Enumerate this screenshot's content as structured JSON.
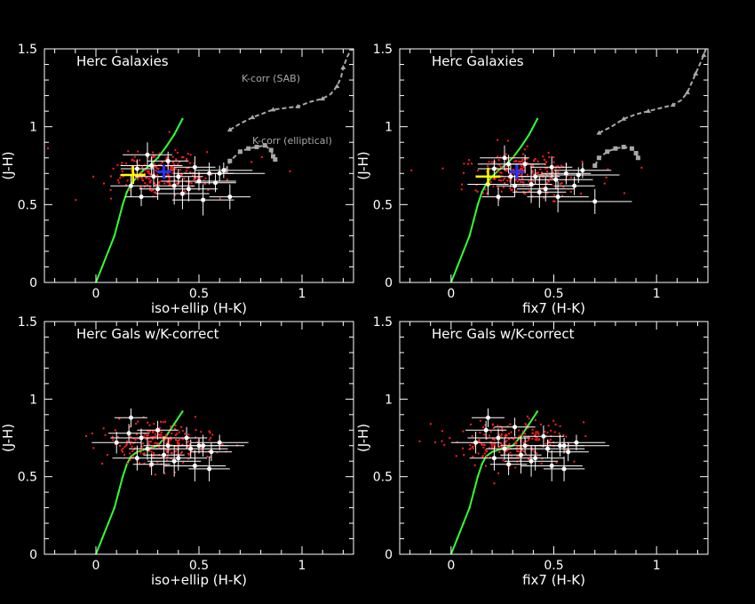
{
  "colors": {
    "background": "#000000",
    "axes": "#ffffff",
    "galaxies": "#ff2020",
    "measurements": "#ffffff",
    "track": "#33ff33",
    "kcorr": "#a8a8a8",
    "mean_marker": "#2233ff",
    "reference_marker": "#ffff00"
  },
  "chart_data": [
    {
      "type": "scatter",
      "title": "Herc Galaxies",
      "xlabel": "iso+ellip (H-K)",
      "ylabel": "(J-H)",
      "xlim": [
        -0.25,
        1.25
      ],
      "ylim": [
        0,
        1.5
      ],
      "xticks": [
        "0",
        "0.5",
        "1"
      ],
      "yticks": [
        "0",
        "0.5",
        "1",
        "1.5"
      ],
      "galaxy_cloud": {
        "center": [
          0.32,
          0.7
        ],
        "spread": [
          0.12,
          0.07
        ]
      },
      "measurements": [
        [
          0.17,
          0.62,
          0.1,
          0.07
        ],
        [
          0.22,
          0.55,
          0.08,
          0.06
        ],
        [
          0.25,
          0.82,
          0.12,
          0.08
        ],
        [
          0.3,
          0.6,
          0.09,
          0.07
        ],
        [
          0.35,
          0.78,
          0.1,
          0.06
        ],
        [
          0.4,
          0.68,
          0.12,
          0.05
        ],
        [
          0.45,
          0.6,
          0.14,
          0.08
        ],
        [
          0.48,
          0.74,
          0.1,
          0.07
        ],
        [
          0.52,
          0.53,
          0.15,
          0.1
        ],
        [
          0.55,
          0.7,
          0.12,
          0.07
        ],
        [
          0.58,
          0.64,
          0.1,
          0.06
        ],
        [
          0.62,
          0.72,
          0.14,
          0.05
        ],
        [
          0.65,
          0.55,
          0.1,
          0.08
        ],
        [
          0.2,
          0.73,
          0.08,
          0.06
        ],
        [
          0.28,
          0.68,
          0.09,
          0.07
        ],
        [
          0.42,
          0.57,
          0.13,
          0.1
        ],
        [
          0.5,
          0.65,
          0.18,
          0.06
        ],
        [
          0.6,
          0.7,
          0.22,
          0.05
        ],
        [
          0.38,
          0.62,
          0.1,
          0.12
        ],
        [
          0.27,
          0.75,
          0.15,
          0.06
        ]
      ],
      "mean_marker": [
        0.33,
        0.71
      ],
      "reference_marker": [
        0.18,
        0.69
      ],
      "kcorr": [
        {
          "name": "K-corr (SAB)",
          "points": [
            [
              0.65,
              0.98
            ],
            [
              0.7,
              1.02
            ],
            [
              0.76,
              1.06
            ],
            [
              0.8,
              1.08
            ],
            [
              0.86,
              1.11
            ],
            [
              0.92,
              1.12
            ],
            [
              0.98,
              1.13
            ],
            [
              1.04,
              1.16
            ],
            [
              1.1,
              1.18
            ],
            [
              1.14,
              1.21
            ],
            [
              1.17,
              1.26
            ],
            [
              1.19,
              1.32
            ],
            [
              1.2,
              1.38
            ],
            [
              1.22,
              1.45
            ],
            [
              1.24,
              1.5
            ]
          ]
        },
        {
          "name": "K-corr (elliptical)",
          "points": [
            [
              0.63,
              0.72
            ],
            [
              0.65,
              0.78
            ],
            [
              0.7,
              0.84
            ],
            [
              0.74,
              0.86
            ],
            [
              0.78,
              0.87
            ],
            [
              0.82,
              0.88
            ],
            [
              0.85,
              0.85
            ],
            [
              0.86,
              0.81
            ],
            [
              0.87,
              0.79
            ]
          ]
        }
      ],
      "track": [
        [
          0.0,
          0.0
        ],
        [
          0.03,
          0.1
        ],
        [
          0.06,
          0.2
        ],
        [
          0.09,
          0.3
        ],
        [
          0.11,
          0.4
        ],
        [
          0.13,
          0.5
        ],
        [
          0.15,
          0.58
        ],
        [
          0.17,
          0.63
        ],
        [
          0.2,
          0.68
        ],
        [
          0.23,
          0.72
        ],
        [
          0.26,
          0.75
        ],
        [
          0.3,
          0.8
        ],
        [
          0.34,
          0.87
        ],
        [
          0.38,
          0.95
        ],
        [
          0.42,
          1.05
        ]
      ]
    },
    {
      "type": "scatter",
      "title": "Herc Galaxies",
      "xlabel": "fix7 (H-K)",
      "ylabel": "(J-H)",
      "xlim": [
        -0.25,
        1.25
      ],
      "ylim": [
        0,
        1.5
      ],
      "xticks": [
        "0",
        "0.5",
        "1"
      ],
      "yticks": [
        "0",
        "0.5",
        "1",
        "1.5"
      ],
      "galaxy_cloud": {
        "center": [
          0.33,
          0.7
        ],
        "spread": [
          0.13,
          0.07
        ]
      },
      "measurements": [
        [
          0.18,
          0.63,
          0.1,
          0.07
        ],
        [
          0.23,
          0.55,
          0.08,
          0.06
        ],
        [
          0.26,
          0.8,
          0.12,
          0.08
        ],
        [
          0.31,
          0.62,
          0.09,
          0.07
        ],
        [
          0.36,
          0.76,
          0.1,
          0.06
        ],
        [
          0.41,
          0.68,
          0.12,
          0.05
        ],
        [
          0.46,
          0.6,
          0.14,
          0.08
        ],
        [
          0.49,
          0.74,
          0.1,
          0.07
        ],
        [
          0.52,
          0.55,
          0.15,
          0.1
        ],
        [
          0.56,
          0.7,
          0.12,
          0.07
        ],
        [
          0.6,
          0.62,
          0.1,
          0.06
        ],
        [
          0.64,
          0.72,
          0.14,
          0.05
        ],
        [
          0.7,
          0.52,
          0.18,
          0.08
        ],
        [
          0.21,
          0.73,
          0.08,
          0.06
        ],
        [
          0.29,
          0.68,
          0.09,
          0.07
        ],
        [
          0.43,
          0.58,
          0.13,
          0.1
        ],
        [
          0.51,
          0.66,
          0.18,
          0.06
        ],
        [
          0.62,
          0.69,
          0.2,
          0.05
        ],
        [
          0.39,
          0.63,
          0.1,
          0.12
        ],
        [
          0.28,
          0.76,
          0.15,
          0.06
        ]
      ],
      "mean_marker": [
        0.32,
        0.71
      ],
      "reference_marker": [
        0.18,
        0.68
      ],
      "kcorr": [
        {
          "name": "",
          "points": [
            [
              0.72,
              0.96
            ],
            [
              0.78,
              1.0
            ],
            [
              0.84,
              1.05
            ],
            [
              0.9,
              1.08
            ],
            [
              0.96,
              1.1
            ],
            [
              1.02,
              1.12
            ],
            [
              1.08,
              1.14
            ],
            [
              1.12,
              1.17
            ],
            [
              1.15,
              1.22
            ],
            [
              1.17,
              1.28
            ],
            [
              1.19,
              1.34
            ],
            [
              1.21,
              1.4
            ],
            [
              1.23,
              1.46
            ],
            [
              1.24,
              1.5
            ]
          ]
        },
        {
          "name": "",
          "points": [
            [
              0.7,
              0.75
            ],
            [
              0.72,
              0.8
            ],
            [
              0.76,
              0.84
            ],
            [
              0.8,
              0.86
            ],
            [
              0.84,
              0.87
            ],
            [
              0.88,
              0.86
            ],
            [
              0.9,
              0.83
            ],
            [
              0.91,
              0.8
            ]
          ]
        }
      ],
      "track": [
        [
          0.0,
          0.0
        ],
        [
          0.03,
          0.1
        ],
        [
          0.06,
          0.2
        ],
        [
          0.09,
          0.3
        ],
        [
          0.11,
          0.4
        ],
        [
          0.13,
          0.5
        ],
        [
          0.15,
          0.58
        ],
        [
          0.17,
          0.63
        ],
        [
          0.2,
          0.68
        ],
        [
          0.23,
          0.72
        ],
        [
          0.26,
          0.75
        ],
        [
          0.3,
          0.8
        ],
        [
          0.34,
          0.87
        ],
        [
          0.38,
          0.95
        ],
        [
          0.42,
          1.05
        ]
      ]
    },
    {
      "type": "scatter",
      "title": "Herc Gals w/K-correct",
      "xlabel": "iso+ellip (H-K)",
      "ylabel": "(J-H)",
      "xlim": [
        -0.25,
        1.25
      ],
      "ylim": [
        0,
        1.5
      ],
      "xticks": [
        "0",
        "0.5",
        "1"
      ],
      "yticks": [
        "0",
        "0.5",
        "1",
        "1.5"
      ],
      "galaxy_cloud": {
        "center": [
          0.3,
          0.72
        ],
        "spread": [
          0.12,
          0.07
        ]
      },
      "measurements": [
        [
          0.1,
          0.72,
          0.12,
          0.07
        ],
        [
          0.16,
          0.78,
          0.1,
          0.06
        ],
        [
          0.2,
          0.62,
          0.12,
          0.08
        ],
        [
          0.25,
          0.68,
          0.09,
          0.07
        ],
        [
          0.3,
          0.8,
          0.1,
          0.06
        ],
        [
          0.35,
          0.7,
          0.12,
          0.05
        ],
        [
          0.4,
          0.62,
          0.14,
          0.08
        ],
        [
          0.44,
          0.75,
          0.1,
          0.07
        ],
        [
          0.48,
          0.57,
          0.15,
          0.1
        ],
        [
          0.52,
          0.7,
          0.12,
          0.07
        ],
        [
          0.56,
          0.66,
          0.1,
          0.06
        ],
        [
          0.6,
          0.72,
          0.14,
          0.05
        ],
        [
          0.55,
          0.55,
          0.1,
          0.08
        ],
        [
          0.17,
          0.88,
          0.08,
          0.06
        ],
        [
          0.27,
          0.58,
          0.09,
          0.07
        ],
        [
          0.38,
          0.6,
          0.13,
          0.1
        ],
        [
          0.46,
          0.68,
          0.18,
          0.06
        ],
        [
          0.5,
          0.7,
          0.22,
          0.05
        ],
        [
          0.33,
          0.64,
          0.1,
          0.12
        ],
        [
          0.22,
          0.75,
          0.15,
          0.06
        ]
      ],
      "mean_marker": null,
      "reference_marker": null,
      "kcorr": [],
      "track": [
        [
          0.0,
          0.0
        ],
        [
          0.03,
          0.1
        ],
        [
          0.06,
          0.2
        ],
        [
          0.09,
          0.3
        ],
        [
          0.11,
          0.4
        ],
        [
          0.13,
          0.5
        ],
        [
          0.15,
          0.58
        ],
        [
          0.17,
          0.63
        ],
        [
          0.2,
          0.66
        ],
        [
          0.25,
          0.68
        ],
        [
          0.3,
          0.7
        ],
        [
          0.34,
          0.76
        ],
        [
          0.38,
          0.84
        ],
        [
          0.42,
          0.92
        ]
      ]
    },
    {
      "type": "scatter",
      "title": "Herc Gals w/K-correct",
      "xlabel": "fix7 (H-K)",
      "ylabel": "(J-H)",
      "xlim": [
        -0.25,
        1.25
      ],
      "ylim": [
        0,
        1.5
      ],
      "xticks": [
        "0",
        "0.5",
        "1"
      ],
      "yticks": [
        "0",
        "0.5",
        "1",
        "1.5"
      ],
      "galaxy_cloud": {
        "center": [
          0.3,
          0.72
        ],
        "spread": [
          0.12,
          0.07
        ]
      },
      "measurements": [
        [
          0.12,
          0.72,
          0.12,
          0.07
        ],
        [
          0.17,
          0.8,
          0.1,
          0.06
        ],
        [
          0.21,
          0.62,
          0.12,
          0.08
        ],
        [
          0.26,
          0.68,
          0.09,
          0.07
        ],
        [
          0.31,
          0.82,
          0.1,
          0.06
        ],
        [
          0.36,
          0.7,
          0.12,
          0.05
        ],
        [
          0.41,
          0.62,
          0.14,
          0.08
        ],
        [
          0.45,
          0.76,
          0.1,
          0.07
        ],
        [
          0.49,
          0.57,
          0.15,
          0.1
        ],
        [
          0.53,
          0.7,
          0.12,
          0.07
        ],
        [
          0.57,
          0.66,
          0.1,
          0.06
        ],
        [
          0.61,
          0.72,
          0.14,
          0.05
        ],
        [
          0.55,
          0.55,
          0.1,
          0.08
        ],
        [
          0.18,
          0.88,
          0.08,
          0.06
        ],
        [
          0.28,
          0.58,
          0.09,
          0.07
        ],
        [
          0.39,
          0.6,
          0.13,
          0.1
        ],
        [
          0.47,
          0.68,
          0.18,
          0.06
        ],
        [
          0.55,
          0.7,
          0.22,
          0.05
        ],
        [
          0.34,
          0.64,
          0.1,
          0.12
        ],
        [
          0.23,
          0.75,
          0.15,
          0.06
        ]
      ],
      "mean_marker": null,
      "reference_marker": null,
      "kcorr": [],
      "track": [
        [
          0.0,
          0.0
        ],
        [
          0.03,
          0.1
        ],
        [
          0.06,
          0.2
        ],
        [
          0.09,
          0.3
        ],
        [
          0.11,
          0.4
        ],
        [
          0.13,
          0.5
        ],
        [
          0.15,
          0.58
        ],
        [
          0.17,
          0.63
        ],
        [
          0.2,
          0.66
        ],
        [
          0.25,
          0.68
        ],
        [
          0.3,
          0.7
        ],
        [
          0.34,
          0.76
        ],
        [
          0.38,
          0.84
        ],
        [
          0.42,
          0.92
        ]
      ]
    }
  ]
}
